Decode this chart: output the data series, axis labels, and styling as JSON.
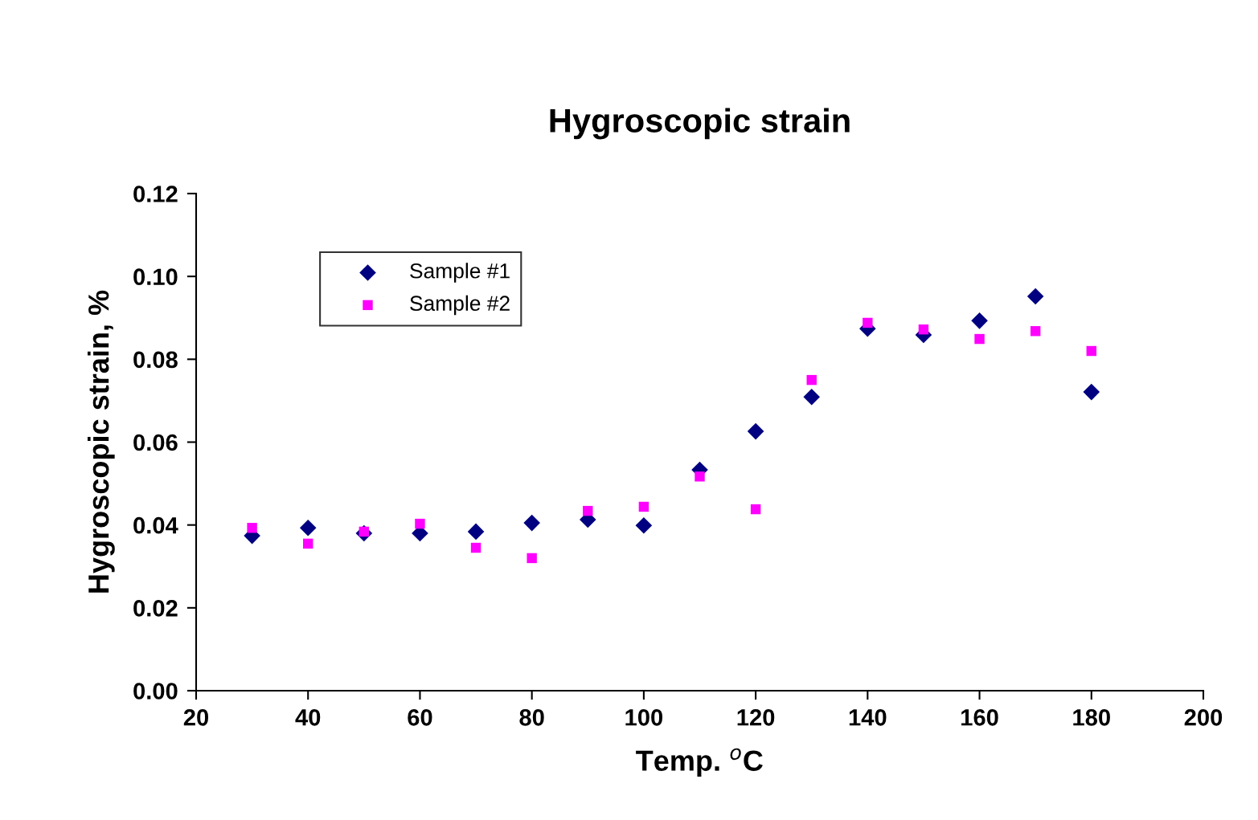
{
  "chart_data": {
    "type": "scatter",
    "title": "Hygroscopic strain",
    "xlabel": "Temp. $^{o}$C",
    "ylabel": "Hygroscopic strain, %",
    "x": [
      30,
      40,
      50,
      60,
      70,
      80,
      90,
      100,
      110,
      120,
      130,
      140,
      150,
      160,
      170,
      180
    ],
    "series": [
      {
        "name": "Sample #1",
        "color": "#000080",
        "marker": "diamond",
        "values": [
          0.0374,
          0.0393,
          0.038,
          0.038,
          0.0384,
          0.0405,
          0.0413,
          0.0399,
          0.0533,
          0.0626,
          0.0709,
          0.0874,
          0.0859,
          0.0893,
          0.0952,
          0.0721
        ]
      },
      {
        "name": "Sample #2",
        "color": "#ff00ff",
        "marker": "square",
        "values": [
          0.0393,
          0.0355,
          0.0384,
          0.0403,
          0.0345,
          0.032,
          0.0434,
          0.0444,
          0.0517,
          0.0438,
          0.075,
          0.0888,
          0.0872,
          0.0849,
          0.0868,
          0.082
        ]
      }
    ],
    "xlim": [
      20,
      200
    ],
    "xticks": [
      20,
      40,
      60,
      80,
      100,
      120,
      140,
      160,
      180,
      200
    ],
    "ylim": [
      0,
      0.12
    ],
    "yticks": [
      {
        "value": 0,
        "label": "0.00"
      },
      {
        "value": 0.02,
        "label": "0.02"
      },
      {
        "value": 0.04,
        "label": "0.04"
      },
      {
        "value": 0.06,
        "label": "0.06"
      },
      {
        "value": 0.08,
        "label": "0.08"
      },
      {
        "value": 0.1,
        "label": "0.10"
      },
      {
        "value": 0.12,
        "label": "0.12"
      }
    ],
    "grid": false,
    "legend": "top left"
  }
}
